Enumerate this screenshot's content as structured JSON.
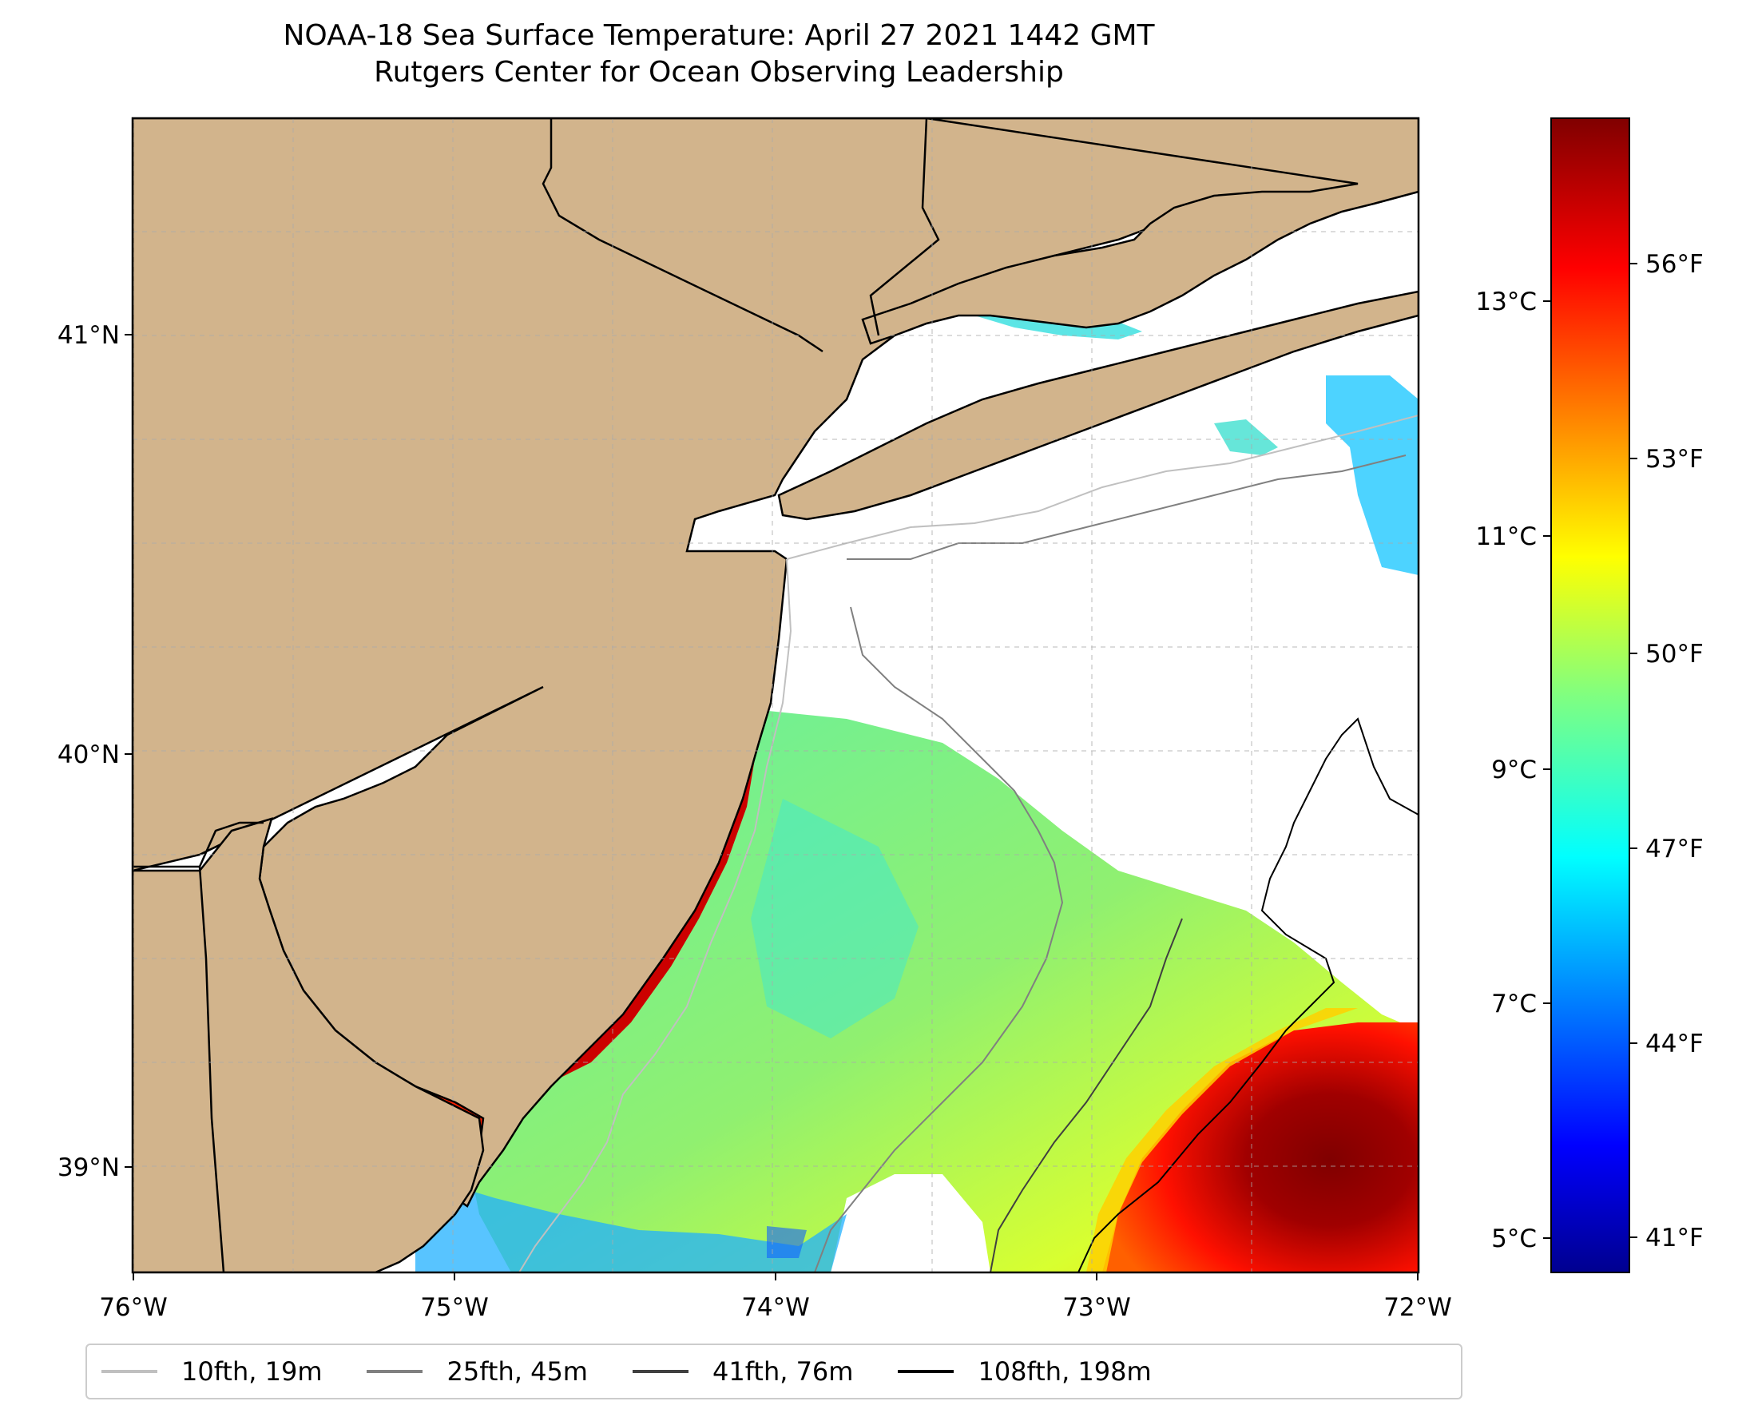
{
  "title": {
    "line1": "NOAA-18 Sea Surface Temperature: April 27 2021 1442 GMT",
    "line2": "Rutgers Center for Ocean Observing Leadership"
  },
  "map": {
    "lon_range": [
      -76,
      -72
    ],
    "lat_range": [
      38.75,
      41.5
    ],
    "lon_ticks": [
      "76°W",
      "75°W",
      "74°W",
      "73°W",
      "72°W"
    ],
    "lat_ticks": [
      "41°N",
      "40°N",
      "39°N"
    ],
    "land_color": "#d2b48c",
    "no_data_color": "#ffffff",
    "grid": true
  },
  "colorbar": {
    "colormap": "jet",
    "celsius_ticks": [
      "13°C",
      "11°C",
      "9°C",
      "7°C",
      "5°C"
    ],
    "fahrenheit_ticks": [
      "56°F",
      "53°F",
      "50°F",
      "47°F",
      "44°F",
      "41°F"
    ]
  },
  "legend": [
    {
      "label": "10fth, 19m",
      "color": "#c0c0c0"
    },
    {
      "label": "25fth, 45m",
      "color": "#808080"
    },
    {
      "label": "41fth, 76m",
      "color": "#404040"
    },
    {
      "label": "108fth, 198m",
      "color": "#000000"
    }
  ]
}
